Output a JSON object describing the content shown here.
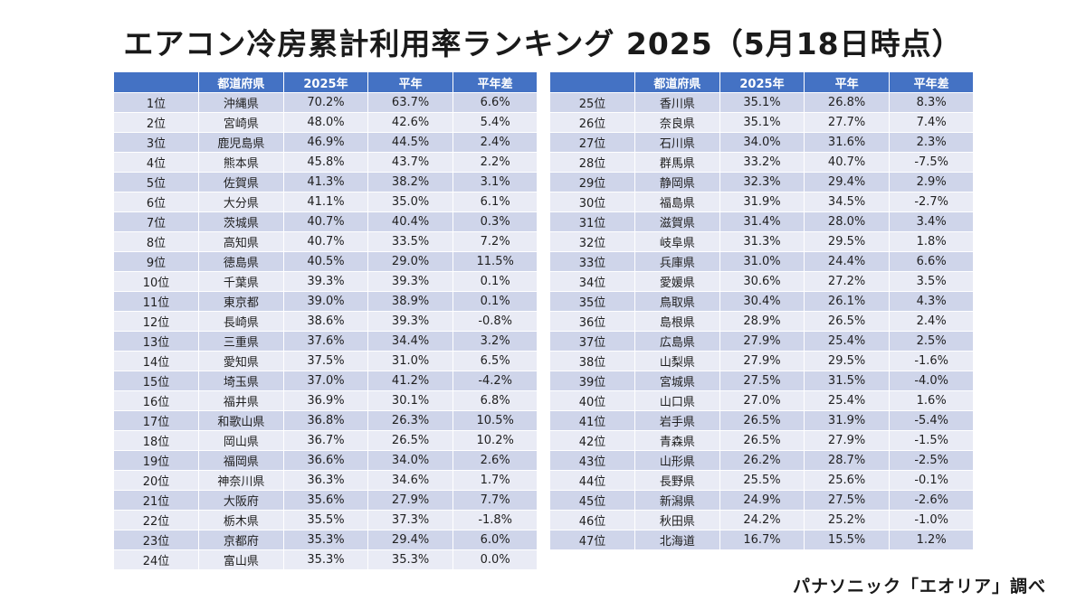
{
  "title": "エアコン冷房累計利用率ランキング 2025（5月18日時点）",
  "headers": [
    "都道府県",
    "2025年",
    "平年",
    "平年差"
  ],
  "left_rows": [
    {
      "rank": "1位",
      "pref": "沖縄県",
      "val2025": "70.2%",
      "normal": "63.7%",
      "diff": "6.6%"
    },
    {
      "rank": "2位",
      "pref": "宮崎県",
      "val2025": "48.0%",
      "normal": "42.6%",
      "diff": "5.4%"
    },
    {
      "rank": "3位",
      "pref": "鹿児島県",
      "val2025": "46.9%",
      "normal": "44.5%",
      "diff": "2.4%"
    },
    {
      "rank": "4位",
      "pref": "熊本県",
      "val2025": "45.8%",
      "normal": "43.7%",
      "diff": "2.2%"
    },
    {
      "rank": "5位",
      "pref": "佐賀県",
      "val2025": "41.3%",
      "normal": "38.2%",
      "diff": "3.1%"
    },
    {
      "rank": "6位",
      "pref": "大分県",
      "val2025": "41.1%",
      "normal": "35.0%",
      "diff": "6.1%"
    },
    {
      "rank": "7位",
      "pref": "茨城県",
      "val2025": "40.7%",
      "normal": "40.4%",
      "diff": "0.3%"
    },
    {
      "rank": "8位",
      "pref": "高知県",
      "val2025": "40.7%",
      "normal": "33.5%",
      "diff": "7.2%"
    },
    {
      "rank": "9位",
      "pref": "徳島県",
      "val2025": "40.5%",
      "normal": "29.0%",
      "diff": "11.5%"
    },
    {
      "rank": "10位",
      "pref": "千葉県",
      "val2025": "39.3%",
      "normal": "39.3%",
      "diff": "0.1%"
    },
    {
      "rank": "11位",
      "pref": "東京都",
      "val2025": "39.0%",
      "normal": "38.9%",
      "diff": "0.1%"
    },
    {
      "rank": "12位",
      "pref": "長崎県",
      "val2025": "38.6%",
      "normal": "39.3%",
      "diff": "-0.8%"
    },
    {
      "rank": "13位",
      "pref": "三重県",
      "val2025": "37.6%",
      "normal": "34.4%",
      "diff": "3.2%"
    },
    {
      "rank": "14位",
      "pref": "愛知県",
      "val2025": "37.5%",
      "normal": "31.0%",
      "diff": "6.5%"
    },
    {
      "rank": "15位",
      "pref": "埼玉県",
      "val2025": "37.0%",
      "normal": "41.2%",
      "diff": "-4.2%"
    },
    {
      "rank": "16位",
      "pref": "福井県",
      "val2025": "36.9%",
      "normal": "30.1%",
      "diff": "6.8%"
    },
    {
      "rank": "17位",
      "pref": "和歌山県",
      "val2025": "36.8%",
      "normal": "26.3%",
      "diff": "10.5%"
    },
    {
      "rank": "18位",
      "pref": "岡山県",
      "val2025": "36.7%",
      "normal": "26.5%",
      "diff": "10.2%"
    },
    {
      "rank": "19位",
      "pref": "福岡県",
      "val2025": "36.6%",
      "normal": "34.0%",
      "diff": "2.6%"
    },
    {
      "rank": "20位",
      "pref": "神奈川県",
      "val2025": "36.3%",
      "normal": "34.6%",
      "diff": "1.7%"
    },
    {
      "rank": "21位",
      "pref": "大阪府",
      "val2025": "35.6%",
      "normal": "27.9%",
      "diff": "7.7%"
    },
    {
      "rank": "22位",
      "pref": "栃木県",
      "val2025": "35.5%",
      "normal": "37.3%",
      "diff": "-1.8%"
    },
    {
      "rank": "23位",
      "pref": "京都府",
      "val2025": "35.3%",
      "normal": "29.4%",
      "diff": "6.0%"
    },
    {
      "rank": "24位",
      "pref": "富山県",
      "val2025": "35.3%",
      "normal": "35.3%",
      "diff": "0.0%"
    }
  ],
  "right_rows": [
    {
      "rank": "25位",
      "pref": "香川県",
      "val2025": "35.1%",
      "normal": "26.8%",
      "diff": "8.3%"
    },
    {
      "rank": "26位",
      "pref": "奈良県",
      "val2025": "35.1%",
      "normal": "27.7%",
      "diff": "7.4%"
    },
    {
      "rank": "27位",
      "pref": "石川県",
      "val2025": "34.0%",
      "normal": "31.6%",
      "diff": "2.3%"
    },
    {
      "rank": "28位",
      "pref": "群馬県",
      "val2025": "33.2%",
      "normal": "40.7%",
      "diff": "-7.5%"
    },
    {
      "rank": "29位",
      "pref": "静岡県",
      "val2025": "32.3%",
      "normal": "29.4%",
      "diff": "2.9%"
    },
    {
      "rank": "30位",
      "pref": "福島県",
      "val2025": "31.9%",
      "normal": "34.5%",
      "diff": "-2.7%"
    },
    {
      "rank": "31位",
      "pref": "滋賀県",
      "val2025": "31.4%",
      "normal": "28.0%",
      "diff": "3.4%"
    },
    {
      "rank": "32位",
      "pref": "岐阜県",
      "val2025": "31.3%",
      "normal": "29.5%",
      "diff": "1.8%"
    },
    {
      "rank": "33位",
      "pref": "兵庫県",
      "val2025": "31.0%",
      "normal": "24.4%",
      "diff": "6.6%"
    },
    {
      "rank": "34位",
      "pref": "愛媛県",
      "val2025": "30.6%",
      "normal": "27.2%",
      "diff": "3.5%"
    },
    {
      "rank": "35位",
      "pref": "鳥取県",
      "val2025": "30.4%",
      "normal": "26.1%",
      "diff": "4.3%"
    },
    {
      "rank": "36位",
      "pref": "島根県",
      "val2025": "28.9%",
      "normal": "26.5%",
      "diff": "2.4%"
    },
    {
      "rank": "37位",
      "pref": "広島県",
      "val2025": "27.9%",
      "normal": "25.4%",
      "diff": "2.5%"
    },
    {
      "rank": "38位",
      "pref": "山梨県",
      "val2025": "27.9%",
      "normal": "29.5%",
      "diff": "-1.6%"
    },
    {
      "rank": "39位",
      "pref": "宮城県",
      "val2025": "27.5%",
      "normal": "31.5%",
      "diff": "-4.0%"
    },
    {
      "rank": "40位",
      "pref": "山口県",
      "val2025": "27.0%",
      "normal": "25.4%",
      "diff": "1.6%"
    },
    {
      "rank": "41位",
      "pref": "岩手県",
      "val2025": "26.5%",
      "normal": "31.9%",
      "diff": "-5.4%"
    },
    {
      "rank": "42位",
      "pref": "青森県",
      "val2025": "26.5%",
      "normal": "27.9%",
      "diff": "-1.5%"
    },
    {
      "rank": "43位",
      "pref": "山形県",
      "val2025": "26.2%",
      "normal": "28.7%",
      "diff": "-2.5%"
    },
    {
      "rank": "44位",
      "pref": "長野県",
      "val2025": "25.5%",
      "normal": "25.6%",
      "diff": "-0.1%"
    },
    {
      "rank": "45位",
      "pref": "新潟県",
      "val2025": "24.9%",
      "normal": "27.5%",
      "diff": "-2.6%"
    },
    {
      "rank": "46位",
      "pref": "秋田県",
      "val2025": "24.2%",
      "normal": "25.2%",
      "diff": "-1.0%"
    },
    {
      "rank": "47位",
      "pref": "北海道",
      "val2025": "16.7%",
      "normal": "15.5%",
      "diff": "1.2%"
    }
  ],
  "source": "パナソニック「エオリア」調べ",
  "colors": {
    "header_bg": "#4472c4",
    "row_dark": "#cfd5ea",
    "row_light": "#e9ebf5"
  }
}
